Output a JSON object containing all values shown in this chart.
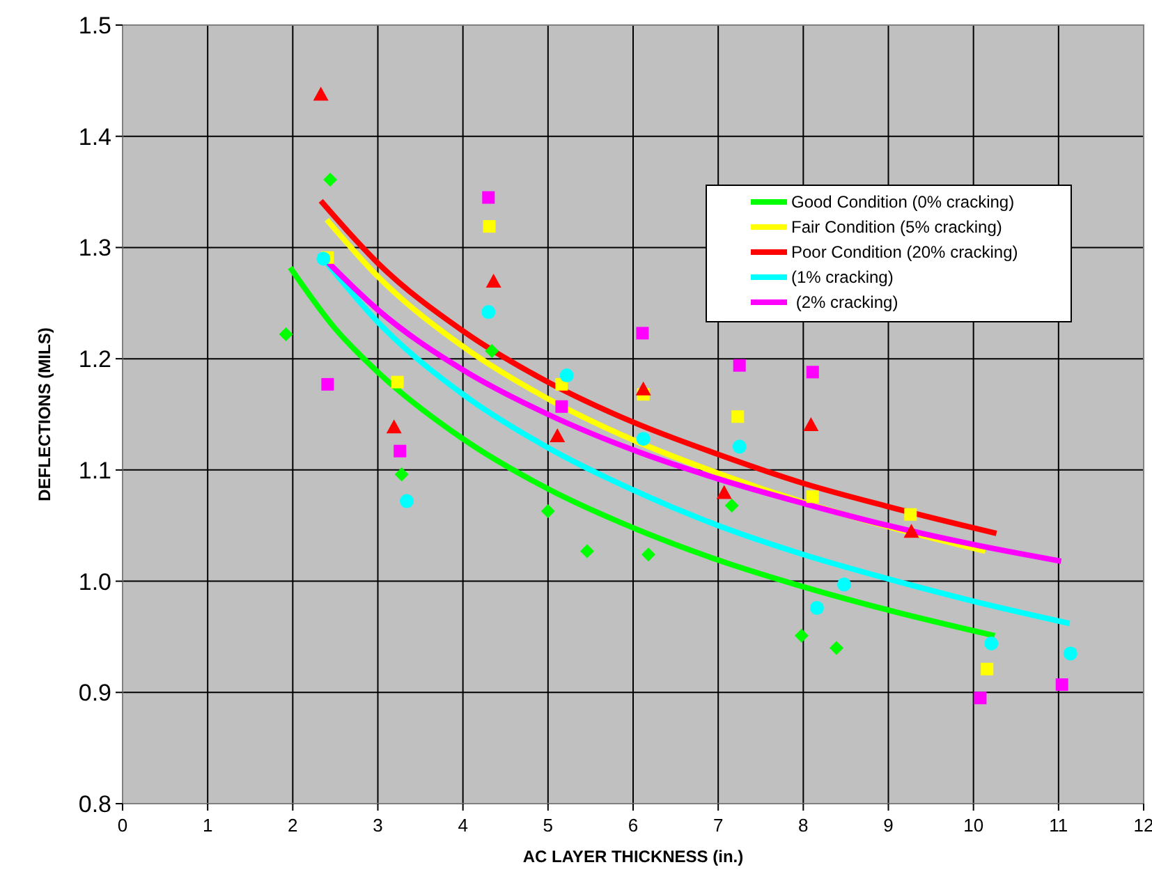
{
  "chart_data": {
    "type": "scatter",
    "xlabel": "AC LAYER THICKNESS (in.)",
    "ylabel": "DEFLECTIONS (MILS)",
    "xlim": [
      0,
      12
    ],
    "ylim": [
      0.8,
      1.5
    ],
    "xticks": [
      0,
      1,
      2,
      3,
      4,
      5,
      6,
      7,
      8,
      9,
      10,
      11,
      12
    ],
    "yticks": [
      {
        "value": 0.8,
        "label": "0.8"
      },
      {
        "value": 0.9,
        "label": "0.9"
      },
      {
        "value": 1.0,
        "label": "1.0"
      },
      {
        "value": 1.1,
        "label": "1.1"
      },
      {
        "value": 1.2,
        "label": "1.2"
      },
      {
        "value": 1.3,
        "label": "1.3"
      },
      {
        "value": 1.4,
        "label": "1.4"
      },
      {
        "value": 1.5,
        "label": "1.5"
      }
    ],
    "grid": true,
    "legend": "top right",
    "series": [
      {
        "marker": "diamond",
        "color": "#00ff00",
        "x": [
          1.92,
          2.44,
          3.28,
          4.34,
          5.0,
          5.46,
          6.18,
          7.16,
          7.98,
          8.39
        ],
        "values": [
          1.222,
          1.361,
          1.096,
          1.207,
          1.063,
          1.027,
          1.024,
          1.068,
          0.951,
          0.94
        ]
      },
      {
        "marker": "square",
        "color": "#ffff00",
        "x": [
          2.41,
          3.23,
          4.31,
          5.16,
          6.12,
          7.23,
          8.11,
          9.26,
          10.16
        ],
        "values": [
          1.291,
          1.179,
          1.319,
          1.177,
          1.168,
          1.148,
          1.076,
          1.06,
          0.921
        ]
      },
      {
        "marker": "triangle",
        "color": "#ff0000",
        "x": [
          2.33,
          3.19,
          4.36,
          5.11,
          6.12,
          7.07,
          8.09,
          9.27
        ],
        "values": [
          1.437,
          1.138,
          1.269,
          1.13,
          1.172,
          1.079,
          1.14,
          1.044
        ]
      },
      {
        "marker": "circle",
        "color": "#00ffff",
        "x": [
          2.36,
          3.34,
          4.3,
          5.22,
          6.12,
          7.25,
          8.16,
          8.48,
          10.21,
          11.14
        ],
        "values": [
          1.29,
          1.072,
          1.242,
          1.185,
          1.128,
          1.121,
          0.976,
          0.997,
          0.944,
          0.935
        ]
      },
      {
        "marker": "square",
        "color": "#ff00ff",
        "x": [
          2.41,
          3.26,
          4.3,
          5.16,
          6.11,
          7.25,
          8.11,
          10.08,
          11.04
        ],
        "values": [
          1.177,
          1.117,
          1.345,
          1.157,
          1.223,
          1.194,
          1.188,
          0.895,
          0.907
        ]
      },
      {
        "type": "line",
        "marker": "none",
        "name": "Good Condition (0% cracking)",
        "color": "#00ff00",
        "x": [
          1.97,
          2.5,
          3,
          4,
          5,
          6,
          7,
          8,
          9,
          10.25
        ],
        "values": [
          1.282,
          1.227,
          1.188,
          1.128,
          1.083,
          1.048,
          1.019,
          0.995,
          0.974,
          0.951
        ]
      },
      {
        "type": "line",
        "marker": "none",
        "name": "Fair Condition (5% cracking)",
        "color": "#ffff00",
        "x": [
          2.4,
          3,
          4,
          5,
          6,
          7,
          8,
          9,
          10.14
        ],
        "values": [
          1.325,
          1.274,
          1.211,
          1.164,
          1.127,
          1.097,
          1.071,
          1.049,
          1.027
        ]
      },
      {
        "type": "line",
        "marker": "none",
        "name": "Poor Condition (20% cracking)",
        "color": "#ff0000",
        "x": [
          2.33,
          3,
          4,
          5,
          6,
          7,
          8,
          9,
          10.27
        ],
        "values": [
          1.342,
          1.286,
          1.225,
          1.179,
          1.143,
          1.114,
          1.088,
          1.067,
          1.043
        ]
      },
      {
        "type": "line",
        "marker": "none",
        "name": "(1% cracking)",
        "color": "#00ffff",
        "x": [
          2.36,
          3,
          4,
          5,
          6,
          7,
          8,
          9,
          10,
          11.13
        ],
        "values": [
          1.29,
          1.233,
          1.168,
          1.12,
          1.082,
          1.05,
          1.024,
          1.002,
          0.982,
          0.962
        ]
      },
      {
        "type": "line",
        "marker": "none",
        "name": " (2% cracking)",
        "color": "#ff00ff",
        "x": [
          2.41,
          3,
          4,
          5,
          6,
          7,
          8,
          9,
          10,
          11.03
        ],
        "values": [
          1.287,
          1.244,
          1.19,
          1.15,
          1.118,
          1.092,
          1.07,
          1.05,
          1.033,
          1.018
        ]
      }
    ]
  }
}
